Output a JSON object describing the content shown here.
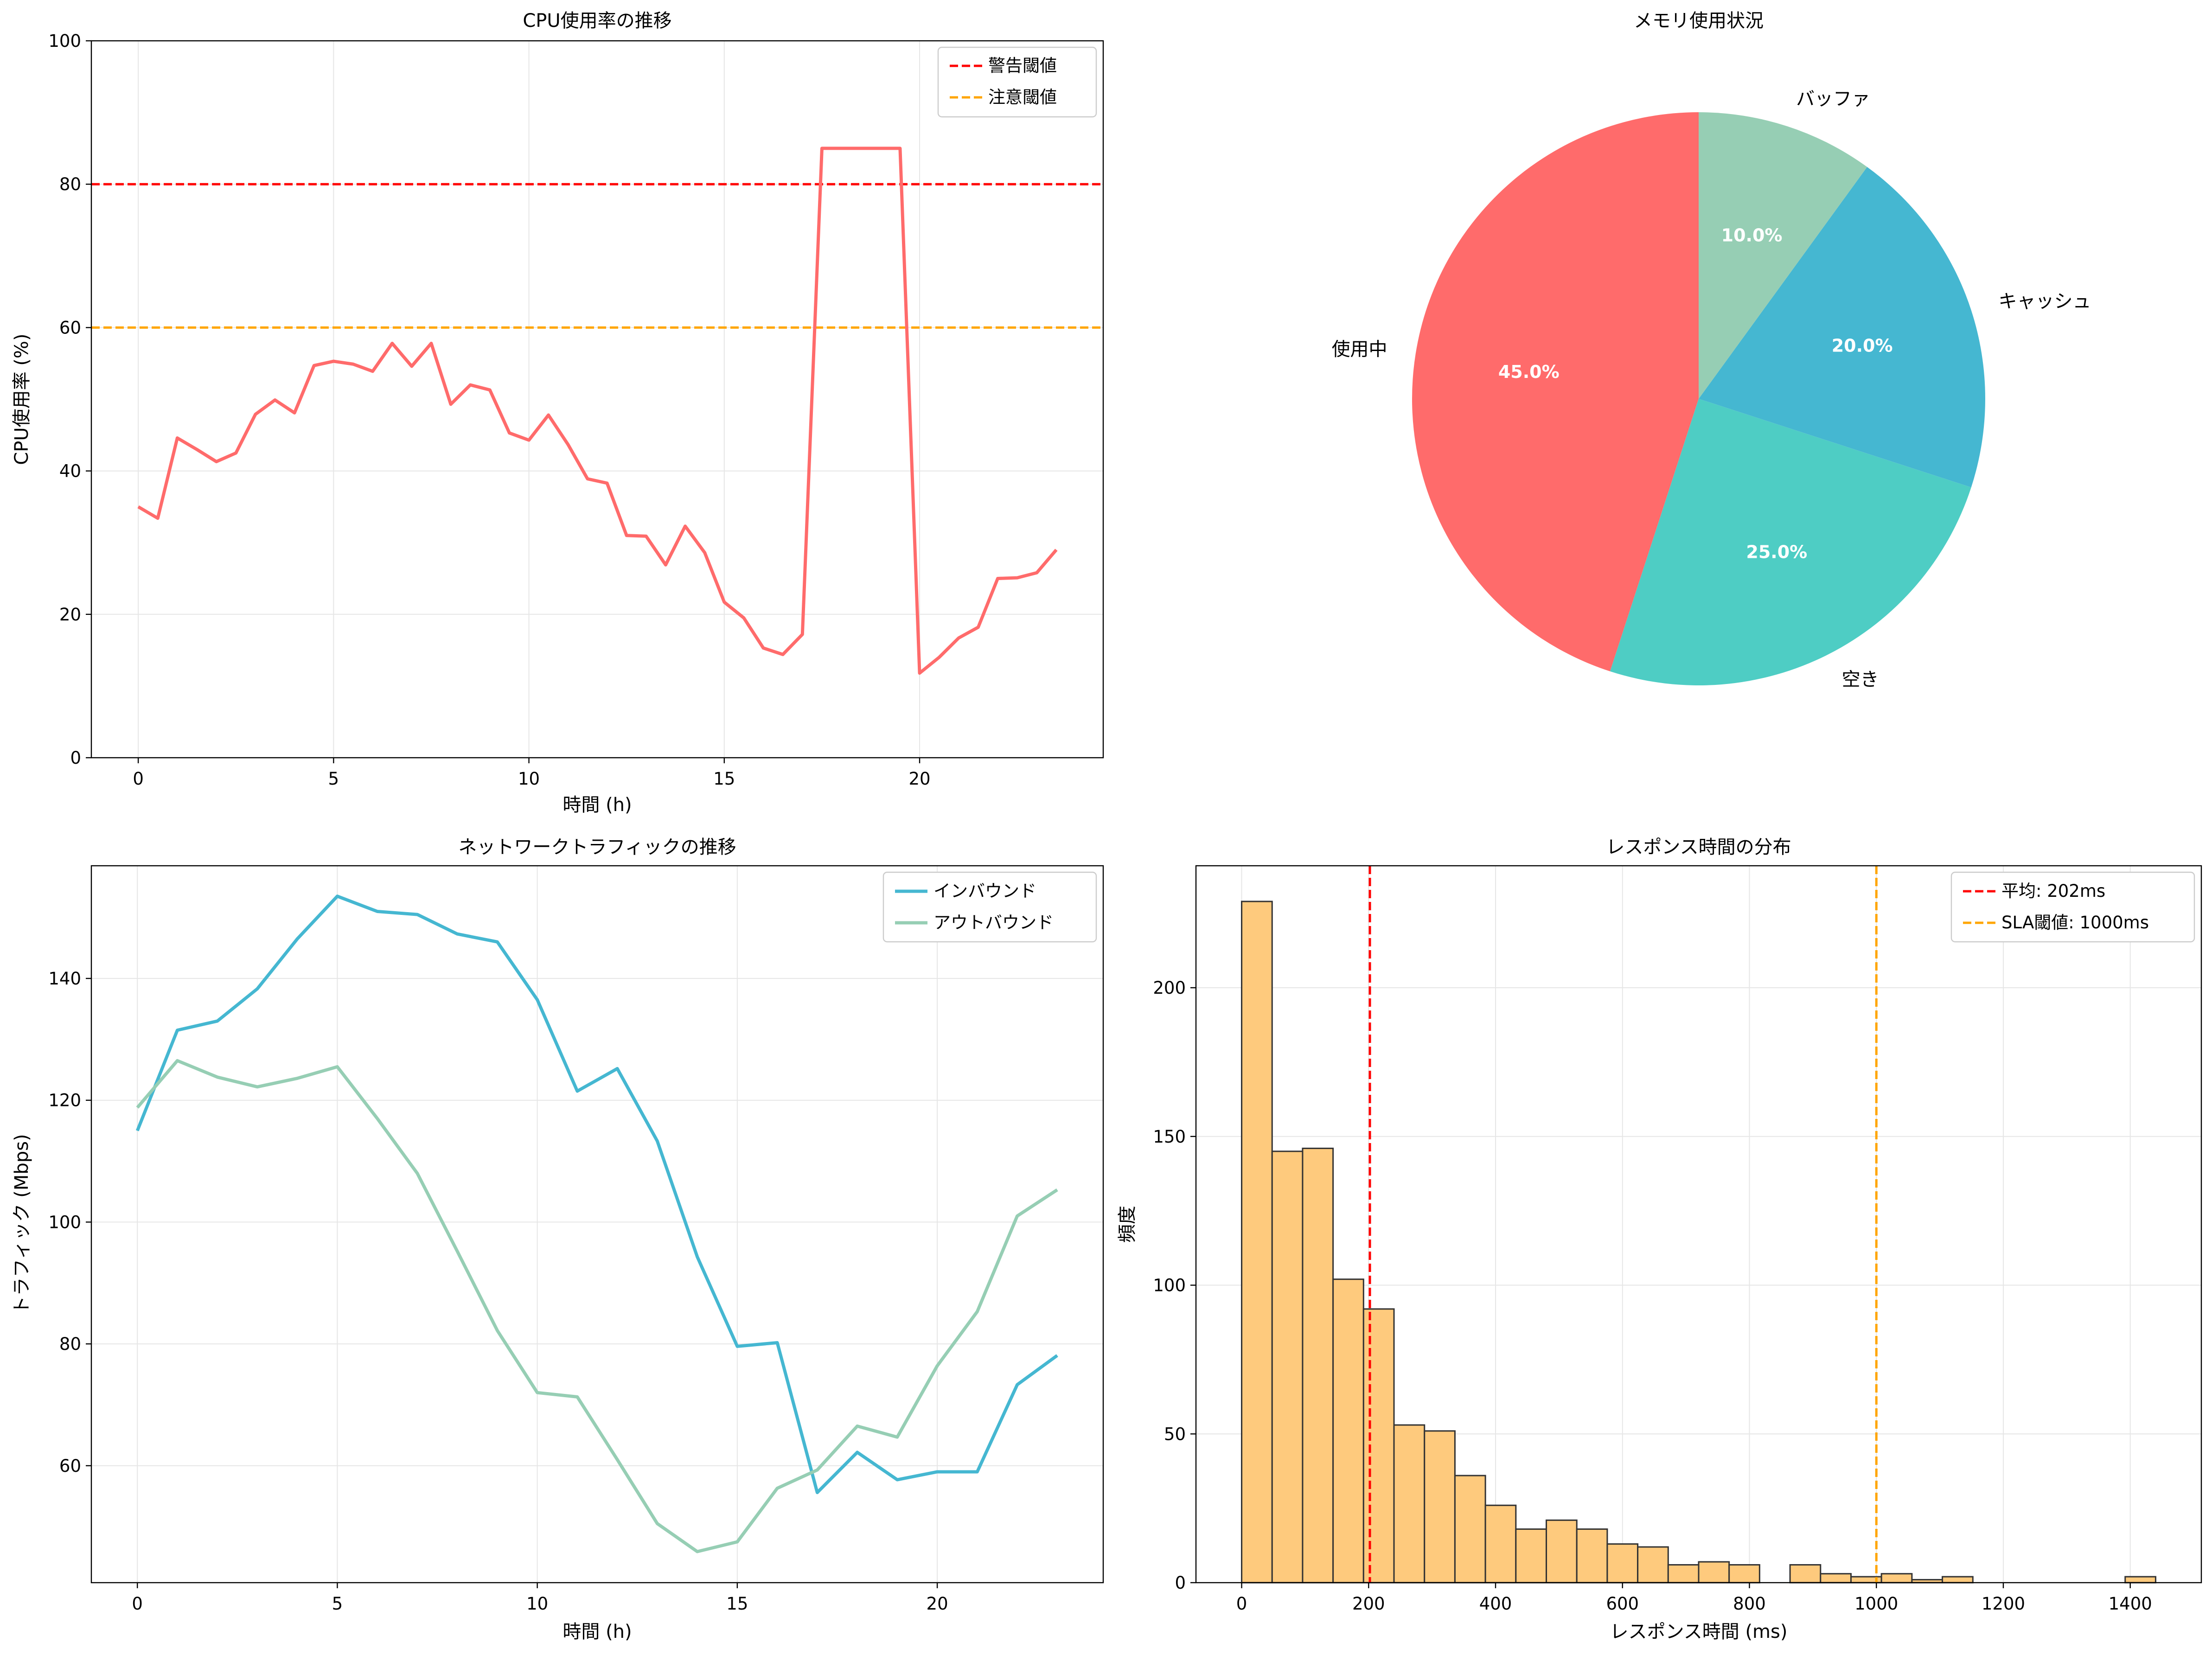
{
  "colors": {
    "cpu_line": "#FF6B6B",
    "warning": "#FF0000",
    "caution": "#FFA500",
    "inbound": "#45B7D1",
    "outbound": "#96CEB4",
    "hist_fill": "#FECA7D",
    "pie": [
      "#FF6B6B",
      "#4ECDC4",
      "#45B7D1",
      "#96CEB4"
    ]
  },
  "chart_data": [
    {
      "id": "cpu",
      "type": "line",
      "title": "CPU使用率の推移",
      "xlabel": "時間 (h)",
      "ylabel": "CPU使用率 (%)",
      "xlim": [
        -1.2,
        24.7
      ],
      "ylim": [
        0,
        100
      ],
      "xticks": [
        0,
        5,
        10,
        15,
        20
      ],
      "yticks": [
        0,
        20,
        40,
        60,
        80,
        100
      ],
      "grid": true,
      "legend_position": "upper-right",
      "series": [
        {
          "name": "CPU使用率",
          "x": [
            0,
            0.5,
            1,
            1.5,
            2,
            2.5,
            3,
            3.5,
            4,
            4.5,
            5,
            5.5,
            6,
            6.5,
            7,
            7.5,
            8,
            8.5,
            9,
            9.5,
            10,
            10.5,
            11,
            11.5,
            12,
            12.5,
            13,
            13.5,
            14,
            14.5,
            15,
            15.5,
            16,
            16.5,
            17,
            17.5,
            18,
            18.5,
            19,
            19.5,
            20,
            20.5,
            21,
            21.5,
            22,
            22.5,
            23,
            23.5
          ],
          "values": [
            35.0,
            33.4,
            44.6,
            43.0,
            41.3,
            42.5,
            47.9,
            49.9,
            48.1,
            54.7,
            55.3,
            54.9,
            53.9,
            57.8,
            54.6,
            57.8,
            49.3,
            52.0,
            51.3,
            45.3,
            44.3,
            47.8,
            43.7,
            38.9,
            38.3,
            31.0,
            30.9,
            26.9,
            32.3,
            28.6,
            21.7,
            19.5,
            15.3,
            14.4,
            17.2,
            85.0,
            85.0,
            85.0,
            85.0,
            85.0,
            11.8,
            14.0,
            16.7,
            18.2,
            25.0,
            25.1,
            25.8,
            29.0
          ]
        }
      ],
      "reference_lines": [
        {
          "name": "警告閾値",
          "value": 80
        },
        {
          "name": "注意閾値",
          "value": 60
        }
      ]
    },
    {
      "id": "memory",
      "type": "pie",
      "title": "メモリ使用状況",
      "categories": [
        "使用中",
        "空き",
        "キャッシュ",
        "バッファ"
      ],
      "values": [
        45,
        25,
        20,
        10
      ],
      "labels_pct": [
        "45.0%",
        "25.0%",
        "20.0%",
        "10.0%"
      ],
      "start_angle": 90
    },
    {
      "id": "network",
      "type": "line",
      "title": "ネットワークトラフィックの推移",
      "xlabel": "時間 (h)",
      "ylabel": "トラフィック (Mbps)",
      "xlim": [
        -1.15,
        24.15
      ],
      "ylim": [
        40.8,
        158.5
      ],
      "xticks": [
        0,
        5,
        10,
        15,
        20
      ],
      "yticks": [
        60,
        80,
        100,
        120,
        140
      ],
      "grid": true,
      "legend_position": "upper-right",
      "x": [
        0,
        1,
        2,
        3,
        4,
        5,
        6,
        7,
        8,
        9,
        10,
        11,
        12,
        13,
        14,
        15,
        16,
        17,
        18,
        19,
        20,
        21,
        22,
        23
      ],
      "series": [
        {
          "name": "インバウンド",
          "values": [
            115,
            131.5,
            133,
            138.3,
            146.5,
            153.5,
            151,
            150.5,
            147.3,
            146,
            136.5,
            121.5,
            125.2,
            113.3,
            94.3,
            79.6,
            80.2,
            55.6,
            62.2,
            57.7,
            59,
            59,
            73.3,
            78.1
          ]
        },
        {
          "name": "アウトバウンド",
          "values": [
            118.8,
            126.5,
            123.8,
            122.2,
            123.6,
            125.5,
            117,
            108,
            95.2,
            82.2,
            72,
            71.3,
            61,
            50.5,
            45.9,
            47.5,
            56.3,
            59.3,
            66.5,
            64.7,
            76.4,
            85.3,
            101,
            105.3
          ]
        }
      ]
    },
    {
      "id": "response",
      "type": "histogram",
      "title": "レスポンス時間の分布",
      "xlabel": "レスポンス時間 (ms)",
      "ylabel": "頻度",
      "xlim": [
        -72,
        1512
      ],
      "ylim": [
        0,
        241
      ],
      "xticks": [
        0,
        200,
        400,
        600,
        800,
        1000,
        1200,
        1400
      ],
      "yticks": [
        0,
        50,
        100,
        150,
        200
      ],
      "grid": true,
      "legend_position": "upper-right",
      "bin_start": 0,
      "bin_width": 48,
      "counts": [
        229,
        145,
        146,
        102,
        92,
        53,
        51,
        36,
        26,
        18,
        21,
        18,
        13,
        12,
        6,
        7,
        6,
        0,
        6,
        3,
        2,
        3,
        1,
        2,
        0,
        0,
        0,
        0,
        0,
        2
      ],
      "reference_lines": [
        {
          "name": "平均: 202ms",
          "value": 202
        },
        {
          "name": "SLA閾値: 1000ms",
          "value": 1000
        }
      ]
    }
  ]
}
